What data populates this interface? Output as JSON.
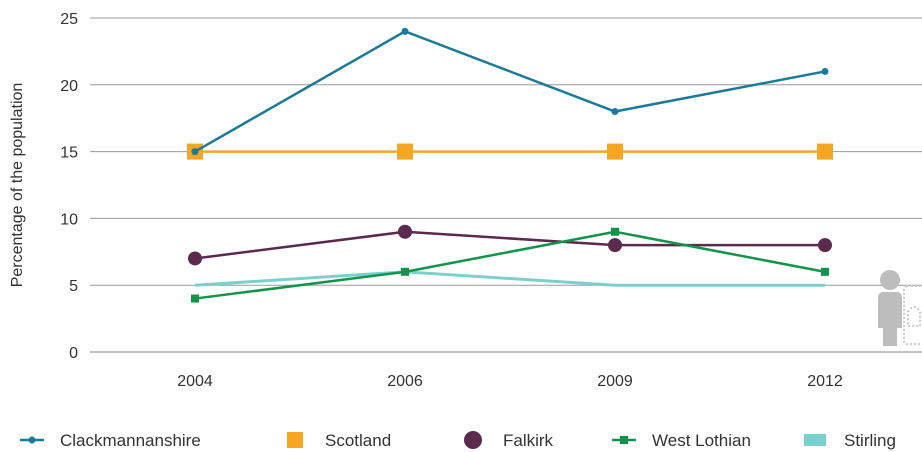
{
  "chart_data": {
    "type": "line",
    "title": "",
    "xlabel": "",
    "ylabel": "Percentage of the population",
    "categories": [
      "2004",
      "2006",
      "2009",
      "2012"
    ],
    "ylim": [
      0,
      25
    ],
    "yticks": [
      0,
      5,
      10,
      15,
      20,
      25
    ],
    "grid": "horizontal",
    "legend_position": "bottom",
    "series": [
      {
        "name": "Clackmannanshire",
        "values": [
          15,
          24,
          18,
          21
        ],
        "color": "#1a7a9a",
        "marker": "small-circle"
      },
      {
        "name": "Scotland",
        "values": [
          15,
          15,
          15,
          15
        ],
        "color": "#f5a623",
        "marker": "square"
      },
      {
        "name": "Falkirk",
        "values": [
          7,
          9,
          8,
          8
        ],
        "color": "#5b2a4e",
        "marker": "large-circle"
      },
      {
        "name": "West Lothian",
        "values": [
          4,
          6,
          9,
          6
        ],
        "color": "#13944a",
        "marker": "small-square"
      },
      {
        "name": "Stirling",
        "values": [
          5,
          6,
          5,
          5
        ],
        "color": "#7ccfcf",
        "marker": "none"
      }
    ]
  },
  "decoration": {
    "icon": "person-icon"
  }
}
